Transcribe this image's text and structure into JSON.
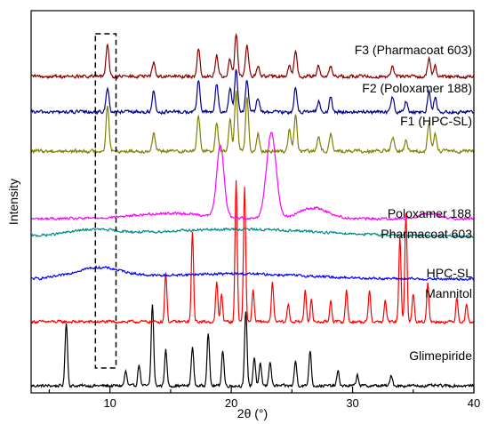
{
  "chart_data": {
    "type": "line",
    "title": "",
    "xlabel": "2θ (°)",
    "ylabel": "Intensity",
    "xlim": [
      3.5,
      40
    ],
    "x_ticks": [
      10,
      20,
      30,
      40
    ],
    "x_tick_labels": [
      "10",
      "20",
      "30",
      "40"
    ],
    "y_ticks_labeled": false,
    "grid": false,
    "legend": "inline labels at right",
    "highlight_box": {
      "x_from": 8.8,
      "x_to": 10.5,
      "style": "dashed"
    },
    "series": [
      {
        "name": "Glimepiride",
        "color": "#000000",
        "offset": 0.0,
        "base": 0.0,
        "noise": 0.006,
        "peaks": [
          [
            6.4,
            0.18,
            0.1
          ],
          [
            11.3,
            0.04,
            0.1
          ],
          [
            12.4,
            0.06,
            0.1
          ],
          [
            13.5,
            0.23,
            0.1
          ],
          [
            14.6,
            0.1,
            0.1
          ],
          [
            16.8,
            0.11,
            0.1
          ],
          [
            18.1,
            0.15,
            0.1
          ],
          [
            19.3,
            0.1,
            0.1
          ],
          [
            21.2,
            0.21,
            0.1
          ],
          [
            21.9,
            0.08,
            0.1
          ],
          [
            22.4,
            0.06,
            0.1
          ],
          [
            23.2,
            0.07,
            0.1
          ],
          [
            25.3,
            0.07,
            0.1
          ],
          [
            26.5,
            0.1,
            0.1
          ],
          [
            28.8,
            0.04,
            0.1
          ],
          [
            30.4,
            0.03,
            0.1
          ],
          [
            33.2,
            0.03,
            0.1
          ]
        ]
      },
      {
        "name": "Mannitol",
        "color": "#ff0000",
        "offset": 0.18,
        "base": 0.0,
        "noise": 0.006,
        "peaks": [
          [
            14.6,
            0.14,
            0.09
          ],
          [
            16.8,
            0.25,
            0.09
          ],
          [
            18.8,
            0.11,
            0.09
          ],
          [
            19.2,
            0.08,
            0.09
          ],
          [
            20.4,
            0.4,
            0.09
          ],
          [
            21.1,
            0.38,
            0.09
          ],
          [
            21.8,
            0.09,
            0.09
          ],
          [
            23.4,
            0.11,
            0.09
          ],
          [
            24.7,
            0.05,
            0.09
          ],
          [
            26.1,
            0.09,
            0.09
          ],
          [
            26.6,
            0.06,
            0.09
          ],
          [
            28.2,
            0.06,
            0.09
          ],
          [
            29.5,
            0.09,
            0.09
          ],
          [
            31.4,
            0.09,
            0.09
          ],
          [
            32.7,
            0.06,
            0.09
          ],
          [
            33.9,
            0.24,
            0.09
          ],
          [
            34.4,
            0.31,
            0.09
          ],
          [
            35.0,
            0.08,
            0.09
          ],
          [
            36.2,
            0.11,
            0.09
          ],
          [
            38.6,
            0.07,
            0.09
          ],
          [
            39.4,
            0.05,
            0.09
          ]
        ]
      },
      {
        "name": "HPC-SL",
        "color": "#0000ff",
        "offset": 0.3,
        "base": 0.0,
        "noise": 0.005,
        "peaks": [
          [
            9.0,
            0.03,
            2.0
          ],
          [
            20.0,
            0.015,
            6.0
          ]
        ]
      },
      {
        "name": "Pharmacoat 603",
        "color": "#008b8b",
        "offset": 0.42,
        "base": 0.0,
        "noise": 0.005,
        "peaks": [
          [
            8.5,
            0.015,
            2.0
          ],
          [
            20.5,
            0.02,
            7.0
          ]
        ]
      },
      {
        "name": "Poloxamer 188",
        "color": "#ff00ff",
        "offset": 0.47,
        "base": 0.0,
        "noise": 0.005,
        "peaks": [
          [
            19.1,
            0.2,
            0.3
          ],
          [
            23.3,
            0.24,
            0.4
          ],
          [
            26.8,
            0.03,
            1.2
          ],
          [
            36.3,
            0.015,
            0.8
          ],
          [
            15.0,
            0.015,
            3.0
          ]
        ]
      },
      {
        "name": "F1 (HPC-SL)",
        "color": "#808000",
        "offset": 0.66,
        "base": 0.0,
        "noise": 0.007,
        "peaks": [
          [
            9.8,
            0.13,
            0.12
          ],
          [
            13.6,
            0.05,
            0.12
          ],
          [
            17.3,
            0.1,
            0.12
          ],
          [
            18.8,
            0.08,
            0.12
          ],
          [
            19.9,
            0.09,
            0.12
          ],
          [
            20.4,
            0.17,
            0.12
          ],
          [
            21.3,
            0.15,
            0.12
          ],
          [
            22.2,
            0.05,
            0.12
          ],
          [
            24.8,
            0.06,
            0.12
          ],
          [
            25.3,
            0.1,
            0.12
          ],
          [
            27.2,
            0.04,
            0.12
          ],
          [
            28.2,
            0.05,
            0.12
          ],
          [
            33.3,
            0.04,
            0.12
          ],
          [
            34.4,
            0.03,
            0.12
          ],
          [
            36.3,
            0.08,
            0.12
          ],
          [
            36.8,
            0.05,
            0.12
          ]
        ]
      },
      {
        "name": "F2 (Poloxamer 188)",
        "color": "#00008b",
        "offset": 0.77,
        "base": 0.0,
        "noise": 0.007,
        "peaks": [
          [
            9.8,
            0.07,
            0.12
          ],
          [
            13.6,
            0.06,
            0.12
          ],
          [
            17.3,
            0.09,
            0.12
          ],
          [
            18.8,
            0.08,
            0.12
          ],
          [
            19.9,
            0.07,
            0.12
          ],
          [
            20.4,
            0.12,
            0.12
          ],
          [
            21.3,
            0.09,
            0.12
          ],
          [
            22.2,
            0.04,
            0.12
          ],
          [
            25.3,
            0.07,
            0.12
          ],
          [
            27.2,
            0.03,
            0.12
          ],
          [
            28.2,
            0.04,
            0.12
          ],
          [
            33.3,
            0.04,
            0.12
          ],
          [
            34.4,
            0.03,
            0.12
          ],
          [
            36.3,
            0.06,
            0.12
          ],
          [
            36.8,
            0.04,
            0.12
          ]
        ]
      },
      {
        "name": "F3 (Pharmacoat 603)",
        "color": "#8b0000",
        "offset": 0.87,
        "base": 0.0,
        "noise": 0.007,
        "peaks": [
          [
            9.8,
            0.09,
            0.12
          ],
          [
            13.6,
            0.04,
            0.12
          ],
          [
            17.3,
            0.08,
            0.12
          ],
          [
            18.8,
            0.06,
            0.12
          ],
          [
            19.9,
            0.05,
            0.12
          ],
          [
            20.4,
            0.12,
            0.12
          ],
          [
            21.3,
            0.09,
            0.12
          ],
          [
            22.2,
            0.03,
            0.12
          ],
          [
            24.8,
            0.03,
            0.12
          ],
          [
            25.3,
            0.07,
            0.12
          ],
          [
            27.2,
            0.03,
            0.12
          ],
          [
            28.2,
            0.03,
            0.12
          ],
          [
            33.3,
            0.03,
            0.12
          ],
          [
            36.3,
            0.05,
            0.12
          ],
          [
            36.8,
            0.03,
            0.12
          ]
        ]
      }
    ]
  }
}
